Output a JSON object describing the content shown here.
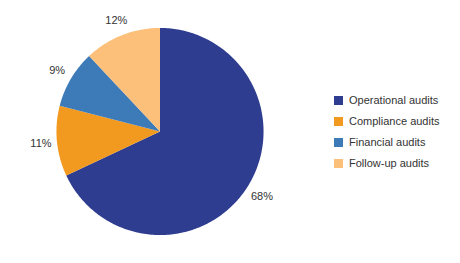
{
  "chart_data": {
    "type": "pie",
    "categories": [
      "Operational audits",
      "Compliance audits",
      "Financial audits",
      "Follow-up audits"
    ],
    "values": [
      68,
      11,
      9,
      12
    ],
    "value_labels": [
      "68%",
      "11%",
      "9%",
      "12%"
    ],
    "colors": [
      "#2e3d8f",
      "#f29a1f",
      "#3d7ab8",
      "#fcc07a"
    ],
    "data_labels": true,
    "legend": "right"
  }
}
